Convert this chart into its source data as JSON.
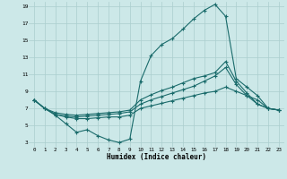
{
  "xlabel": "Humidex (Indice chaleur)",
  "bg_color": "#cce8e8",
  "grid_color": "#aacece",
  "line_color": "#1a6b6b",
  "xlim": [
    -0.5,
    23.5
  ],
  "ylim": [
    2.5,
    19.5
  ],
  "xticks": [
    0,
    1,
    2,
    3,
    4,
    5,
    6,
    7,
    8,
    9,
    10,
    11,
    12,
    13,
    14,
    15,
    16,
    17,
    18,
    19,
    20,
    21,
    22,
    23
  ],
  "yticks": [
    3,
    5,
    7,
    9,
    11,
    13,
    15,
    17,
    19
  ],
  "line1_x": [
    0,
    1,
    2,
    3,
    4,
    5,
    6,
    7,
    8,
    9,
    10,
    11,
    12,
    13,
    14,
    15,
    16,
    17,
    18,
    19,
    20,
    21,
    22,
    23
  ],
  "line1_y": [
    8.0,
    7.0,
    6.2,
    5.2,
    4.2,
    4.5,
    3.8,
    3.3,
    3.0,
    3.4,
    10.2,
    13.2,
    14.5,
    15.2,
    16.3,
    17.5,
    18.5,
    19.2,
    17.8,
    10.5,
    9.5,
    8.5,
    7.0,
    6.8
  ],
  "line2_x": [
    0,
    1,
    2,
    3,
    4,
    5,
    6,
    7,
    8,
    9,
    10,
    11,
    12,
    13,
    14,
    15,
    16,
    17,
    18,
    19,
    20,
    21,
    22,
    23
  ],
  "line2_y": [
    8.0,
    7.0,
    6.5,
    6.3,
    6.2,
    6.3,
    6.4,
    6.5,
    6.6,
    6.8,
    8.0,
    8.6,
    9.1,
    9.5,
    10.0,
    10.5,
    10.8,
    11.2,
    12.5,
    10.2,
    8.8,
    7.5,
    7.0,
    6.8
  ],
  "line3_x": [
    0,
    1,
    2,
    3,
    4,
    5,
    6,
    7,
    8,
    9,
    10,
    11,
    12,
    13,
    14,
    15,
    16,
    17,
    18,
    19,
    20,
    21,
    22,
    23
  ],
  "line3_y": [
    8.0,
    7.0,
    6.3,
    6.0,
    5.8,
    5.8,
    5.9,
    6.0,
    6.0,
    6.2,
    7.0,
    7.3,
    7.6,
    7.9,
    8.2,
    8.5,
    8.8,
    9.0,
    9.5,
    9.0,
    8.5,
    8.0,
    7.0,
    6.8
  ],
  "line4_x": [
    0,
    1,
    2,
    3,
    4,
    5,
    6,
    7,
    8,
    9,
    10,
    11,
    12,
    13,
    14,
    15,
    16,
    17,
    18,
    19,
    20,
    21,
    22,
    23
  ],
  "line4_y": [
    8.0,
    7.0,
    6.3,
    6.1,
    6.0,
    6.1,
    6.2,
    6.3,
    6.4,
    6.6,
    7.5,
    8.0,
    8.4,
    8.8,
    9.2,
    9.6,
    10.2,
    10.8,
    11.8,
    9.8,
    8.5,
    7.5,
    7.0,
    6.8
  ]
}
